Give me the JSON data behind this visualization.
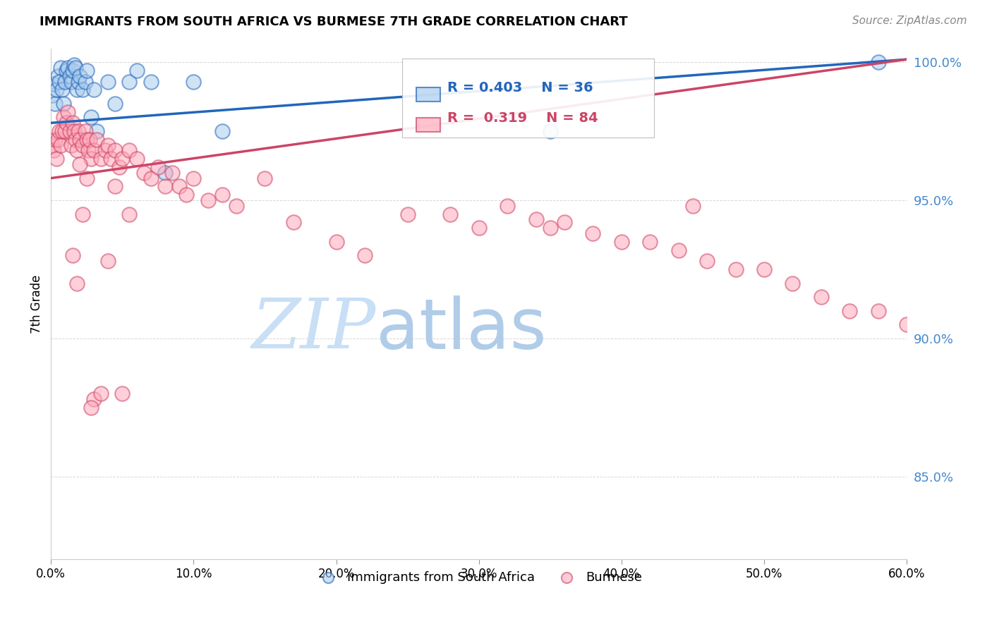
{
  "title": "IMMIGRANTS FROM SOUTH AFRICA VS BURMESE 7TH GRADE CORRELATION CHART",
  "source": "Source: ZipAtlas.com",
  "ylabel": "7th Grade",
  "xlim": [
    0.0,
    0.6
  ],
  "ylim": [
    0.82,
    1.005
  ],
  "yticks": [
    0.85,
    0.9,
    0.95,
    1.0
  ],
  "ytick_labels": [
    "85.0%",
    "90.0%",
    "95.0%",
    "100.0%"
  ],
  "xticks": [
    0.0,
    0.1,
    0.2,
    0.3,
    0.4,
    0.5,
    0.6
  ],
  "xtick_labels": [
    "0.0%",
    "10.0%",
    "20.0%",
    "30.0%",
    "40.0%",
    "50.0%",
    "60.0%"
  ],
  "ytick_color": "#4488cc",
  "legend_r1": "R = 0.403",
  "legend_n1": "N = 36",
  "legend_r2": "R =  0.319",
  "legend_n2": "N = 84",
  "color_blue": "#aaccee",
  "color_pink": "#ffaabb",
  "line_blue": "#2266bb",
  "line_pink": "#cc4466",
  "watermark_zip": "ZIP",
  "watermark_atlas": "atlas",
  "watermark_color_zip": "#c8dff5",
  "watermark_color_atlas": "#b0cce8",
  "blue_x": [
    0.001,
    0.002,
    0.003,
    0.004,
    0.005,
    0.006,
    0.007,
    0.008,
    0.009,
    0.01,
    0.011,
    0.012,
    0.013,
    0.014,
    0.015,
    0.016,
    0.017,
    0.018,
    0.019,
    0.02,
    0.022,
    0.024,
    0.025,
    0.028,
    0.03,
    0.032,
    0.04,
    0.045,
    0.055,
    0.06,
    0.07,
    0.08,
    0.1,
    0.12,
    0.35,
    0.58
  ],
  "blue_y": [
    0.988,
    0.992,
    0.985,
    0.99,
    0.995,
    0.993,
    0.998,
    0.99,
    0.985,
    0.993,
    0.997,
    0.998,
    0.995,
    0.993,
    0.997,
    0.999,
    0.998,
    0.99,
    0.993,
    0.995,
    0.99,
    0.993,
    0.997,
    0.98,
    0.99,
    0.975,
    0.993,
    0.985,
    0.993,
    0.997,
    0.993,
    0.96,
    0.993,
    0.975,
    0.975,
    1.0
  ],
  "pink_x": [
    0.001,
    0.002,
    0.003,
    0.004,
    0.005,
    0.006,
    0.007,
    0.008,
    0.009,
    0.01,
    0.011,
    0.012,
    0.013,
    0.014,
    0.015,
    0.016,
    0.017,
    0.018,
    0.019,
    0.02,
    0.022,
    0.024,
    0.025,
    0.026,
    0.027,
    0.028,
    0.03,
    0.032,
    0.035,
    0.038,
    0.04,
    0.042,
    0.045,
    0.048,
    0.05,
    0.055,
    0.06,
    0.065,
    0.07,
    0.075,
    0.08,
    0.085,
    0.09,
    0.095,
    0.1,
    0.11,
    0.12,
    0.13,
    0.15,
    0.17,
    0.2,
    0.22,
    0.25,
    0.28,
    0.3,
    0.32,
    0.34,
    0.35,
    0.36,
    0.38,
    0.4,
    0.42,
    0.44,
    0.45,
    0.46,
    0.48,
    0.5,
    0.52,
    0.54,
    0.56,
    0.58,
    0.6,
    0.02,
    0.025,
    0.03,
    0.035,
    0.04,
    0.045,
    0.05,
    0.055,
    0.015,
    0.018,
    0.022,
    0.028
  ],
  "pink_y": [
    0.97,
    0.968,
    0.972,
    0.965,
    0.972,
    0.975,
    0.97,
    0.975,
    0.98,
    0.975,
    0.978,
    0.982,
    0.975,
    0.97,
    0.978,
    0.975,
    0.972,
    0.968,
    0.975,
    0.972,
    0.97,
    0.975,
    0.972,
    0.968,
    0.972,
    0.965,
    0.968,
    0.972,
    0.965,
    0.968,
    0.97,
    0.965,
    0.968,
    0.962,
    0.965,
    0.968,
    0.965,
    0.96,
    0.958,
    0.962,
    0.955,
    0.96,
    0.955,
    0.952,
    0.958,
    0.95,
    0.952,
    0.948,
    0.958,
    0.942,
    0.935,
    0.93,
    0.945,
    0.945,
    0.94,
    0.948,
    0.943,
    0.94,
    0.942,
    0.938,
    0.935,
    0.935,
    0.932,
    0.948,
    0.928,
    0.925,
    0.925,
    0.92,
    0.915,
    0.91,
    0.91,
    0.905,
    0.963,
    0.958,
    0.878,
    0.88,
    0.928,
    0.955,
    0.88,
    0.945,
    0.93,
    0.92,
    0.945,
    0.875
  ]
}
